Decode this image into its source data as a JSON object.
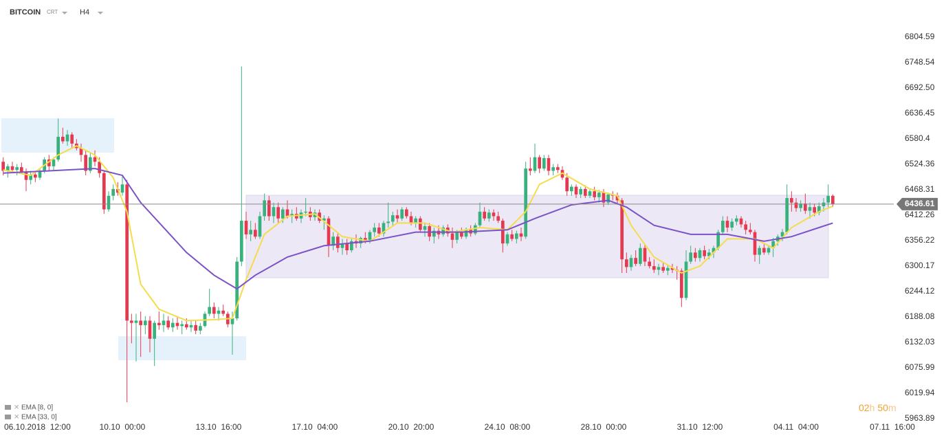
{
  "header": {
    "symbol": "BITCOIN",
    "type": "CRT",
    "interval": "H4"
  },
  "timer": [
    "02",
    "h",
    "50",
    "m"
  ],
  "chart_data": {
    "type": "candlestick",
    "last_price": 6436.61,
    "up_color": "#37b27c",
    "down_color": "#e5394f",
    "ylim": [
      5963.89,
      6804.59
    ],
    "yticks": [
      6804.59,
      6748.54,
      {
        "value": 6692.5,
        "label": "6692.50"
      },
      6636.45,
      6580.4,
      6524.36,
      6468.31,
      6412.26,
      6356.22,
      6300.17,
      6244.12,
      6188.08,
      6132.03,
      6075.99,
      6019.94,
      5963.89
    ],
    "xlim": [
      -0.7,
      194.3
    ],
    "xticks": [
      {
        "value": 5,
        "label": "06.10.2018  12:00"
      },
      {
        "value": 26,
        "label": "10.10  00:00"
      },
      {
        "value": 47,
        "label": "13.10  16:00"
      },
      {
        "value": 68,
        "label": "17.10  04:00"
      },
      {
        "value": 89,
        "label": "20.10  20:00"
      },
      {
        "value": 110,
        "label": "24.10  08:00"
      },
      {
        "value": 131,
        "label": "28.10  00:00"
      },
      {
        "value": 152,
        "label": "31.10  12:00"
      },
      {
        "value": 173,
        "label": "04.11  04:00"
      },
      {
        "value": 194,
        "label": "07.11  16:00"
      }
    ],
    "candles": [
      [
        6530,
        6540,
        6500,
        6510
      ],
      [
        6510,
        6525,
        6495,
        6520
      ],
      [
        6520,
        6530,
        6505,
        6512
      ],
      [
        6512,
        6525,
        6500,
        6518
      ],
      [
        6518,
        6528,
        6505,
        6508
      ],
      [
        6508,
        6515,
        6465,
        6490
      ],
      [
        6490,
        6510,
        6480,
        6502
      ],
      [
        6502,
        6510,
        6485,
        6495
      ],
      [
        6495,
        6515,
        6490,
        6510
      ],
      [
        6510,
        6540,
        6505,
        6535
      ],
      [
        6535,
        6545,
        6510,
        6520
      ],
      [
        6520,
        6540,
        6512,
        6535
      ],
      [
        6535,
        6625,
        6530,
        6585
      ],
      [
        6585,
        6605,
        6570,
        6575
      ],
      [
        6575,
        6600,
        6565,
        6590
      ],
      [
        6590,
        6595,
        6560,
        6570
      ],
      [
        6570,
        6580,
        6555,
        6560
      ],
      [
        6560,
        6570,
        6530,
        6545
      ],
      [
        6545,
        6555,
        6500,
        6510
      ],
      [
        6510,
        6550,
        6505,
        6540
      ],
      [
        6540,
        6555,
        6520,
        6530
      ],
      [
        6530,
        6540,
        6495,
        6505
      ],
      [
        6505,
        6510,
        6415,
        6425
      ],
      [
        6425,
        6465,
        6420,
        6455
      ],
      [
        6455,
        6480,
        6445,
        6470
      ],
      [
        6470,
        6485,
        6455,
        6462
      ],
      [
        6462,
        6500,
        6455,
        6480
      ],
      [
        6480,
        6490,
        6000,
        6180
      ],
      [
        6180,
        6195,
        6130,
        6175
      ],
      [
        6175,
        6195,
        6090,
        6180
      ],
      [
        6180,
        6200,
        6100,
        6170
      ],
      [
        6170,
        6190,
        6150,
        6180
      ],
      [
        6180,
        6190,
        6110,
        6140
      ],
      [
        6140,
        6180,
        6080,
        6175
      ],
      [
        6175,
        6200,
        6160,
        6170
      ],
      [
        6170,
        6195,
        6155,
        6180
      ],
      [
        6180,
        6190,
        6160,
        6165
      ],
      [
        6165,
        6185,
        6155,
        6175
      ],
      [
        6175,
        6190,
        6160,
        6168
      ],
      [
        6168,
        6180,
        6150,
        6172
      ],
      [
        6172,
        6185,
        6160,
        6165
      ],
      [
        6165,
        6180,
        6155,
        6170
      ],
      [
        6170,
        6180,
        6150,
        6158
      ],
      [
        6158,
        6175,
        6150,
        6168
      ],
      [
        6168,
        6200,
        6165,
        6195
      ],
      [
        6195,
        6250,
        6190,
        6210
      ],
      [
        6210,
        6220,
        6185,
        6195
      ],
      [
        6195,
        6210,
        6180,
        6202
      ],
      [
        6202,
        6215,
        6190,
        6195
      ],
      [
        6195,
        6200,
        6165,
        6172
      ],
      [
        6172,
        6200,
        6105,
        6185
      ],
      [
        6185,
        6320,
        6180,
        6310
      ],
      [
        6310,
        6740,
        6300,
        6400
      ],
      [
        6400,
        6420,
        6360,
        6370
      ],
      [
        6370,
        6400,
        6355,
        6380
      ],
      [
        6380,
        6395,
        6360,
        6365
      ],
      [
        6365,
        6420,
        6360,
        6410
      ],
      [
        6410,
        6460,
        6400,
        6445
      ],
      [
        6445,
        6455,
        6400,
        6410
      ],
      [
        6410,
        6440,
        6395,
        6430
      ],
      [
        6430,
        6440,
        6395,
        6405
      ],
      [
        6405,
        6430,
        6395,
        6425
      ],
      [
        6425,
        6445,
        6405,
        6410
      ],
      [
        6410,
        6425,
        6395,
        6415
      ],
      [
        6415,
        6430,
        6400,
        6405
      ],
      [
        6405,
        6425,
        6395,
        6418
      ],
      [
        6418,
        6450,
        6410,
        6420
      ],
      [
        6420,
        6430,
        6400,
        6408
      ],
      [
        6408,
        6425,
        6400,
        6418
      ],
      [
        6418,
        6425,
        6395,
        6400
      ],
      [
        6400,
        6412,
        6380,
        6405
      ],
      [
        6405,
        6410,
        6320,
        6345
      ],
      [
        6345,
        6375,
        6335,
        6365
      ],
      [
        6365,
        6375,
        6330,
        6340
      ],
      [
        6340,
        6360,
        6325,
        6350
      ],
      [
        6350,
        6360,
        6325,
        6335
      ],
      [
        6335,
        6360,
        6330,
        6355
      ],
      [
        6355,
        6370,
        6340,
        6350
      ],
      [
        6350,
        6365,
        6340,
        6362
      ],
      [
        6362,
        6375,
        6350,
        6358
      ],
      [
        6358,
        6380,
        6350,
        6375
      ],
      [
        6375,
        6395,
        6365,
        6385
      ],
      [
        6385,
        6395,
        6365,
        6372
      ],
      [
        6372,
        6400,
        6365,
        6395
      ],
      [
        6395,
        6440,
        6385,
        6398
      ],
      [
        6398,
        6420,
        6390,
        6412
      ],
      [
        6412,
        6425,
        6395,
        6405
      ],
      [
        6405,
        6430,
        6400,
        6425
      ],
      [
        6425,
        6430,
        6405,
        6410
      ],
      [
        6410,
        6420,
        6390,
        6395
      ],
      [
        6395,
        6410,
        6385,
        6405
      ],
      [
        6405,
        6410,
        6375,
        6380
      ],
      [
        6380,
        6395,
        6365,
        6388
      ],
      [
        6388,
        6395,
        6355,
        6365
      ],
      [
        6365,
        6385,
        6350,
        6378
      ],
      [
        6378,
        6390,
        6360,
        6370
      ],
      [
        6370,
        6390,
        6365,
        6385
      ],
      [
        6385,
        6392,
        6365,
        6372
      ],
      [
        6372,
        6385,
        6340,
        6358
      ],
      [
        6358,
        6380,
        6350,
        6375
      ],
      [
        6375,
        6385,
        6360,
        6365
      ],
      [
        6365,
        6385,
        6360,
        6380
      ],
      [
        6380,
        6390,
        6365,
        6372
      ],
      [
        6372,
        6395,
        6368,
        6390
      ],
      [
        6390,
        6440,
        6385,
        6420
      ],
      [
        6420,
        6430,
        6400,
        6405
      ],
      [
        6405,
        6425,
        6398,
        6418
      ],
      [
        6418,
        6425,
        6400,
        6410
      ],
      [
        6410,
        6420,
        6395,
        6400
      ],
      [
        6400,
        6405,
        6330,
        6350
      ],
      [
        6350,
        6375,
        6345,
        6370
      ],
      [
        6370,
        6380,
        6355,
        6360
      ],
      [
        6360,
        6378,
        6350,
        6372
      ],
      [
        6372,
        6385,
        6355,
        6365
      ],
      [
        6365,
        6530,
        6360,
        6515
      ],
      [
        6515,
        6540,
        6500,
        6510
      ],
      [
        6510,
        6570,
        6505,
        6540
      ],
      [
        6540,
        6545,
        6505,
        6515
      ],
      [
        6515,
        6545,
        6510,
        6538
      ],
      [
        6538,
        6545,
        6500,
        6510
      ],
      [
        6510,
        6525,
        6500,
        6518
      ],
      [
        6518,
        6525,
        6505,
        6512
      ],
      [
        6512,
        6520,
        6490,
        6495
      ],
      [
        6495,
        6505,
        6455,
        6465
      ],
      [
        6465,
        6480,
        6455,
        6475
      ],
      [
        6475,
        6480,
        6450,
        6458
      ],
      [
        6458,
        6475,
        6450,
        6470
      ],
      [
        6470,
        6478,
        6450,
        6455
      ],
      [
        6455,
        6470,
        6450,
        6465
      ],
      [
        6465,
        6475,
        6445,
        6452
      ],
      [
        6452,
        6468,
        6440,
        6462
      ],
      [
        6462,
        6470,
        6430,
        6440
      ],
      [
        6440,
        6462,
        6435,
        6458
      ],
      [
        6458,
        6465,
        6445,
        6455
      ],
      [
        6455,
        6462,
        6435,
        6445
      ],
      [
        6445,
        6450,
        6285,
        6315
      ],
      [
        6315,
        6330,
        6285,
        6298
      ],
      [
        6298,
        6325,
        6290,
        6318
      ],
      [
        6318,
        6335,
        6300,
        6305
      ],
      [
        6305,
        6350,
        6300,
        6340
      ],
      [
        6340,
        6350,
        6300,
        6310
      ],
      [
        6310,
        6320,
        6295,
        6300
      ],
      [
        6300,
        6315,
        6285,
        6292
      ],
      [
        6292,
        6305,
        6280,
        6298
      ],
      [
        6298,
        6310,
        6285,
        6290
      ],
      [
        6290,
        6302,
        6280,
        6296
      ],
      [
        6296,
        6305,
        6285,
        6292
      ],
      [
        6292,
        6300,
        6270,
        6290
      ],
      [
        6290,
        6295,
        6210,
        6230
      ],
      [
        6230,
        6335,
        6225,
        6310
      ],
      [
        6310,
        6345,
        6305,
        6330
      ],
      [
        6330,
        6340,
        6310,
        6318
      ],
      [
        6318,
        6340,
        6310,
        6335
      ],
      [
        6335,
        6345,
        6315,
        6322
      ],
      [
        6322,
        6338,
        6315,
        6330
      ],
      [
        6330,
        6345,
        6318,
        6340
      ],
      [
        6340,
        6380,
        6335,
        6375
      ],
      [
        6375,
        6410,
        6370,
        6400
      ],
      [
        6400,
        6410,
        6375,
        6385
      ],
      [
        6385,
        6405,
        6378,
        6398
      ],
      [
        6398,
        6412,
        6390,
        6405
      ],
      [
        6405,
        6410,
        6385,
        6392
      ],
      [
        6392,
        6400,
        6370,
        6380
      ],
      [
        6380,
        6395,
        6370,
        6375
      ],
      [
        6375,
        6380,
        6310,
        6325
      ],
      [
        6325,
        6345,
        6305,
        6340
      ],
      [
        6340,
        6348,
        6325,
        6330
      ],
      [
        6330,
        6345,
        6325,
        6340
      ],
      [
        6340,
        6362,
        6320,
        6355
      ],
      [
        6355,
        6370,
        6345,
        6365
      ],
      [
        6365,
        6382,
        6355,
        6375
      ],
      [
        6375,
        6480,
        6370,
        6450
      ],
      [
        6450,
        6465,
        6420,
        6440
      ],
      [
        6440,
        6450,
        6420,
        6428
      ],
      [
        6428,
        6445,
        6420,
        6438
      ],
      [
        6438,
        6460,
        6415,
        6422
      ],
      [
        6422,
        6440,
        6405,
        6430
      ],
      [
        6430,
        6438,
        6410,
        6418
      ],
      [
        6418,
        6440,
        6412,
        6432
      ],
      [
        6432,
        6450,
        6420,
        6440
      ],
      [
        6440,
        6480,
        6430,
        6455
      ],
      [
        6455,
        6458,
        6430,
        6437
      ]
    ],
    "series": [
      {
        "name": "EMA [8, 0]",
        "color": "#f4dc4c",
        "x": [
          0,
          6,
          12,
          16,
          20,
          24,
          27,
          30,
          34,
          40,
          46,
          50,
          53,
          57,
          62,
          68,
          74,
          80,
          86,
          92,
          98,
          104,
          110,
          114,
          117,
          122,
          128,
          134,
          137,
          142,
          148,
          152,
          158,
          164,
          168,
          172,
          178,
          181
        ],
        "values": [
          6512,
          6500,
          6545,
          6565,
          6545,
          6495,
          6420,
          6260,
          6205,
          6180,
          6182,
          6185,
          6270,
          6370,
          6410,
          6415,
          6365,
          6355,
          6395,
          6395,
          6375,
          6385,
          6380,
          6420,
          6480,
          6505,
          6470,
          6455,
          6390,
          6320,
          6285,
          6300,
          6360,
          6360,
          6340,
          6385,
          6420,
          6432
        ]
      },
      {
        "name": "EMA [33, 0]",
        "color": "#7b52c7",
        "x": [
          0,
          10,
          20,
          26,
          30,
          40,
          46,
          51,
          55,
          62,
          70,
          80,
          90,
          100,
          110,
          116,
          124,
          132,
          136,
          142,
          150,
          158,
          166,
          172,
          178,
          181
        ],
        "values": [
          6505,
          6510,
          6515,
          6500,
          6440,
          6330,
          6280,
          6250,
          6280,
          6320,
          6345,
          6355,
          6375,
          6375,
          6380,
          6405,
          6435,
          6445,
          6430,
          6390,
          6370,
          6370,
          6355,
          6365,
          6385,
          6395
        ]
      }
    ]
  }
}
